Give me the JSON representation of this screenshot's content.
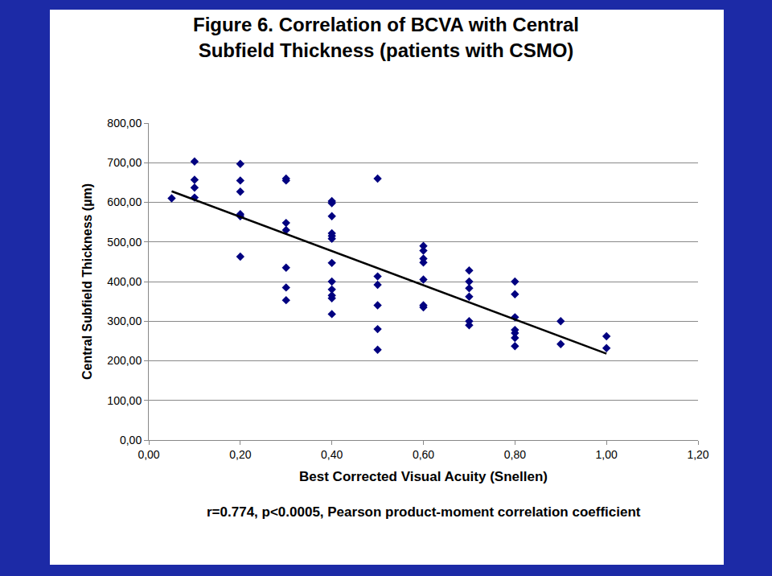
{
  "chart_data": {
    "type": "scatter",
    "title": "Figure 6. Correlation of BCVA with Central\nSubfield Thickness (patients with CSMO)",
    "xlabel": "Best Corrected Visual Acuity (Snellen)",
    "ylabel": "Central Subfield Thickness (µm)",
    "annotations": [
      "r=0.774, p<0.0005, Pearson product-moment correlation coefficient"
    ],
    "xlim": [
      0,
      1.2
    ],
    "ylim": [
      0,
      800
    ],
    "xticks": [
      {
        "value": 0,
        "label": "0,00"
      },
      {
        "value": 0.2,
        "label": "0,20"
      },
      {
        "value": 0.4,
        "label": "0,40"
      },
      {
        "value": 0.6,
        "label": "0,60"
      },
      {
        "value": 0.8,
        "label": "0,80"
      },
      {
        "value": 1.0,
        "label": "1,00"
      },
      {
        "value": 1.2,
        "label": "1,20"
      }
    ],
    "yticks": [
      {
        "value": 0,
        "label": "0,00"
      },
      {
        "value": 100,
        "label": "100,00"
      },
      {
        "value": 200,
        "label": "200,00"
      },
      {
        "value": 300,
        "label": "300,00"
      },
      {
        "value": 400,
        "label": "400,00"
      },
      {
        "value": 500,
        "label": "500,00"
      },
      {
        "value": 600,
        "label": "600,00"
      },
      {
        "value": 700,
        "label": "700,00"
      },
      {
        "value": 800,
        "label": "800,00"
      }
    ],
    "grid": true,
    "series": [
      {
        "type": "scatter",
        "color": "#000080",
        "marker": "diamond",
        "x": [
          0.05,
          0.1,
          0.1,
          0.1,
          0.1,
          0.2,
          0.2,
          0.2,
          0.2,
          0.2,
          0.2,
          0.3,
          0.3,
          0.3,
          0.3,
          0.3,
          0.3,
          0.3,
          0.4,
          0.4,
          0.4,
          0.4,
          0.4,
          0.4,
          0.4,
          0.4,
          0.4,
          0.4,
          0.4,
          0.4,
          0.5,
          0.5,
          0.5,
          0.5,
          0.5,
          0.5,
          0.6,
          0.6,
          0.6,
          0.6,
          0.6,
          0.6,
          0.6,
          0.7,
          0.7,
          0.7,
          0.7,
          0.7,
          0.7,
          0.8,
          0.8,
          0.8,
          0.8,
          0.8,
          0.8,
          0.8,
          0.9,
          0.9,
          1.0,
          1.0
        ],
        "values": [
          610,
          703,
          657,
          637,
          612,
          697,
          655,
          627,
          570,
          565,
          463,
          660,
          655,
          548,
          530,
          435,
          385,
          353,
          603,
          598,
          565,
          522,
          515,
          508,
          447,
          400,
          380,
          365,
          358,
          318,
          660,
          413,
          392,
          340,
          280,
          228,
          490,
          478,
          458,
          448,
          405,
          340,
          335,
          428,
          400,
          383,
          362,
          300,
          290,
          400,
          368,
          310,
          278,
          270,
          258,
          237,
          300,
          242,
          262,
          232
        ]
      },
      {
        "type": "line",
        "color": "#000000",
        "line_style": "solid",
        "x": [
          0.05,
          1.0
        ],
        "values": [
          628,
          218
        ]
      }
    ]
  }
}
